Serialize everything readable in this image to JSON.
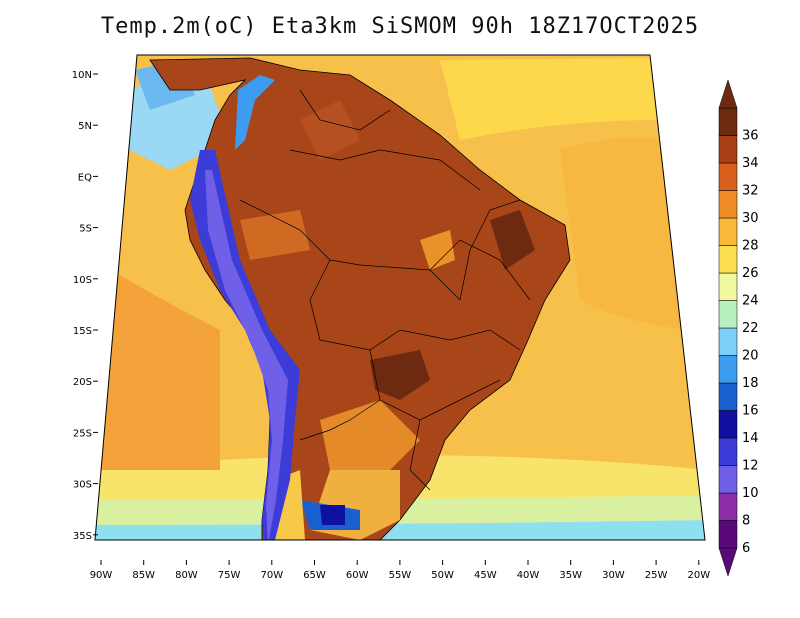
{
  "title": "Temp.2m(oC) Eta3km SiSMOM 90h 18Z17OCT2025",
  "map": {
    "lat_labels": [
      "10N",
      "5N",
      "EQ",
      "5S",
      "10S",
      "15S",
      "20S",
      "25S",
      "30S",
      "35S"
    ],
    "lon_labels": [
      "90W",
      "85W",
      "80W",
      "75W",
      "70W",
      "65W",
      "60W",
      "55W",
      "50W",
      "45W",
      "40W",
      "35W",
      "30W",
      "25W",
      "20W"
    ]
  },
  "colorbar": {
    "levels": [
      "6",
      "8",
      "10",
      "12",
      "14",
      "16",
      "18",
      "20",
      "22",
      "24",
      "26",
      "28",
      "30",
      "32",
      "34",
      "36"
    ],
    "colors": [
      "#5a0a78",
      "#8c2ca8",
      "#7060e8",
      "#3c3cd8",
      "#1010a0",
      "#1a5fd0",
      "#3c9cf0",
      "#7cd0f8",
      "#b8f0c0",
      "#f0f8a0",
      "#fce050",
      "#f8b838",
      "#f08c28",
      "#d8601c",
      "#a83e14",
      "#6e2a10"
    ]
  }
}
